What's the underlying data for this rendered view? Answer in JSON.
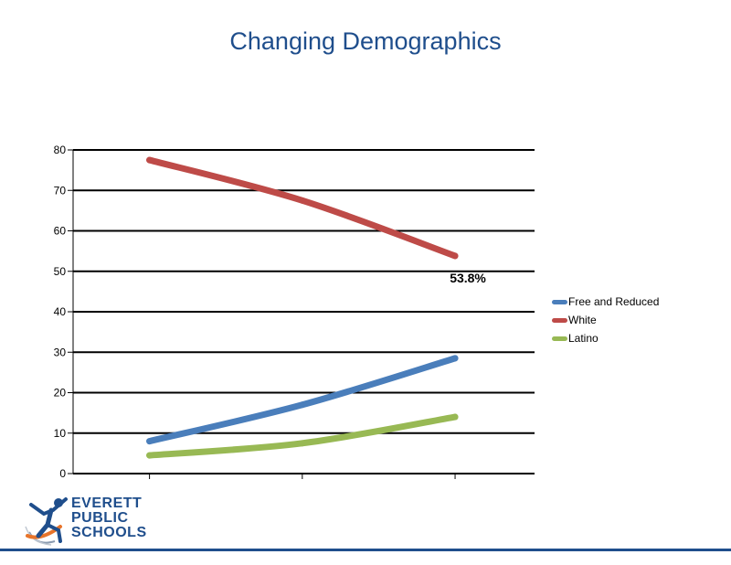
{
  "title": "Changing Demographics",
  "colors": {
    "title": "#1f4e8c",
    "free_and_reduced": "#4a7ebb",
    "white": "#be4b48",
    "latino": "#98b954"
  },
  "logo": {
    "line1": "EVERETT",
    "line2": "PUBLIC",
    "line3": "SCHOOLS",
    "icon": "running-figure-globe-icon"
  },
  "chart_data": {
    "type": "line",
    "categories": [
      "",
      "",
      ""
    ],
    "ylim": [
      0,
      80
    ],
    "yticks": [
      "0",
      "10",
      "20",
      "30",
      "40",
      "50",
      "60",
      "70",
      "80"
    ],
    "grid": true,
    "legend_position": "right",
    "series": [
      {
        "name": "Free and Reduced",
        "values": [
          8,
          17,
          28.5
        ],
        "color": "#4a7ebb"
      },
      {
        "name": "White",
        "values": [
          77.5,
          67.5,
          53.8
        ],
        "color": "#be4b48"
      },
      {
        "name": "Latino",
        "values": [
          4.5,
          7.5,
          14
        ],
        "color": "#98b954"
      }
    ],
    "annotations": [
      {
        "series": "White",
        "point": 2,
        "text": "53.8%"
      }
    ]
  }
}
